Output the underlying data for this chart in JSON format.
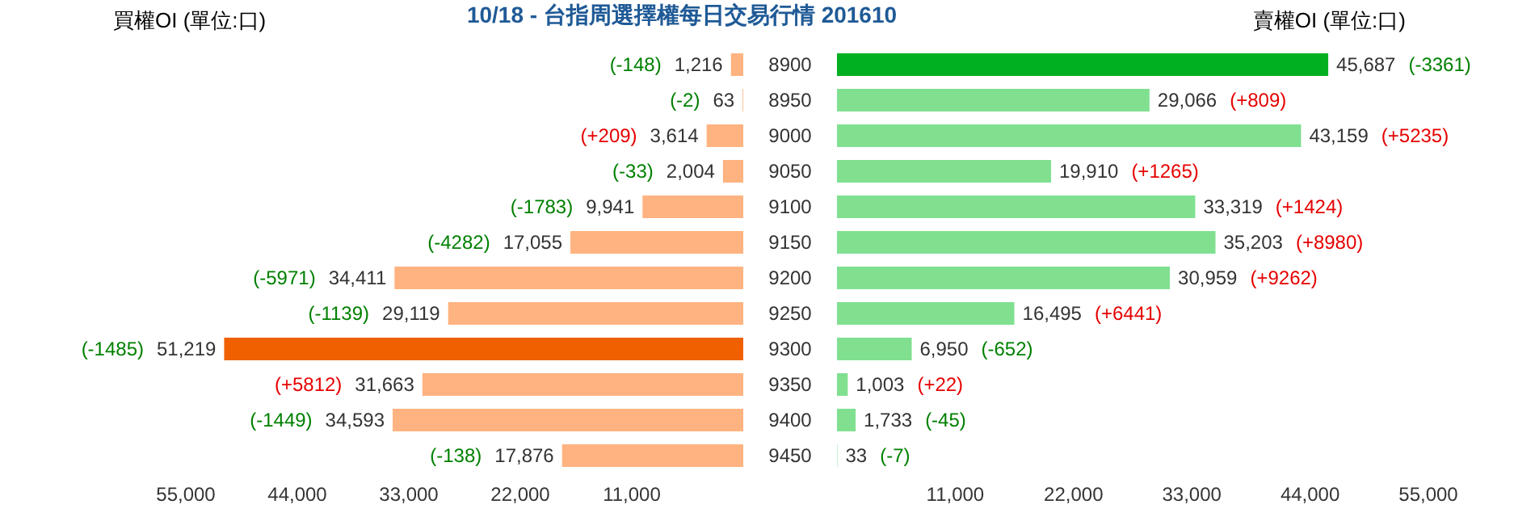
{
  "chart_data": [
    {
      "type": "bar",
      "orientation": "horizontal",
      "title": "10/18 - 台指周選擇權每日交易行情 201610",
      "xlabel": "買權OI (單位:口)",
      "categories": [
        "8900",
        "8950",
        "9000",
        "9050",
        "9100",
        "9150",
        "9200",
        "9250",
        "9300",
        "9350",
        "9400",
        "9450"
      ],
      "values": [
        1216,
        63,
        3614,
        2004,
        9941,
        17055,
        34411,
        29119,
        51219,
        31663,
        34593,
        17876
      ],
      "colors": [
        "#ffb380",
        "#ffb380",
        "#ffb380",
        "#ffb380",
        "#ffb380",
        "#ffb380",
        "#ffb380",
        "#ffb380",
        "#f06000",
        "#ffb380",
        "#ffb380",
        "#ffb380"
      ],
      "value_labels": [
        "1,216",
        "63",
        "3,614",
        "2,004",
        "9,941",
        "17,055",
        "34,411",
        "29,119",
        "51,219",
        "31,663",
        "34,593",
        "17,876"
      ],
      "xlim": [
        55000,
        0
      ],
      "xticks": [
        {
          "value": 55000,
          "label": "55,000"
        },
        {
          "value": 44000,
          "label": "44,000"
        },
        {
          "value": 33000,
          "label": "33,000"
        },
        {
          "value": 22000,
          "label": "22,000"
        },
        {
          "value": 11000,
          "label": "11,000"
        }
      ],
      "annotations": [
        "(-148)",
        "(-2)",
        "(+209)",
        "(-33)",
        "(-1783)",
        "(-4282)",
        "(-5971)",
        "(-1139)",
        "(-1485)",
        "(+5812)",
        "(-1449)",
        "(-138)"
      ]
    },
    {
      "type": "bar",
      "orientation": "horizontal",
      "xlabel": "賣權OI (單位:口)",
      "tick_labels": "x",
      "categories": [
        "8900",
        "8950",
        "9000",
        "9050",
        "9100",
        "9150",
        "9200",
        "9250",
        "9300",
        "9350",
        "9400",
        "9450"
      ],
      "values": [
        45687,
        29066,
        43159,
        19910,
        33319,
        35203,
        30959,
        16495,
        6950,
        1003,
        1733,
        33
      ],
      "colors": [
        "#00b020",
        "#80e090",
        "#80e090",
        "#80e090",
        "#80e090",
        "#80e090",
        "#80e090",
        "#80e090",
        "#80e090",
        "#80e090",
        "#80e090",
        "#80e090"
      ],
      "value_labels": [
        "45,687",
        "29,066",
        "43,159",
        "19,910",
        "33,319",
        "35,203",
        "30,959",
        "16,495",
        "6,950",
        "1,003",
        "1,733",
        "33"
      ],
      "xlim": [
        0,
        55000
      ],
      "xticks": [
        {
          "value": 11000,
          "label": "11,000"
        },
        {
          "value": 22000,
          "label": "22,000"
        },
        {
          "value": 33000,
          "label": "33,000"
        },
        {
          "value": 44000,
          "label": "44,000"
        },
        {
          "value": 55000,
          "label": "55,000"
        }
      ],
      "annotations": [
        "(-3361)",
        "(+809)",
        "(+5235)",
        "(+1265)",
        "(+1424)",
        "(+8980)",
        "(+9262)",
        "(+6441)",
        "(-652)",
        "(+22)",
        "(-45)",
        "(-7)"
      ]
    }
  ]
}
